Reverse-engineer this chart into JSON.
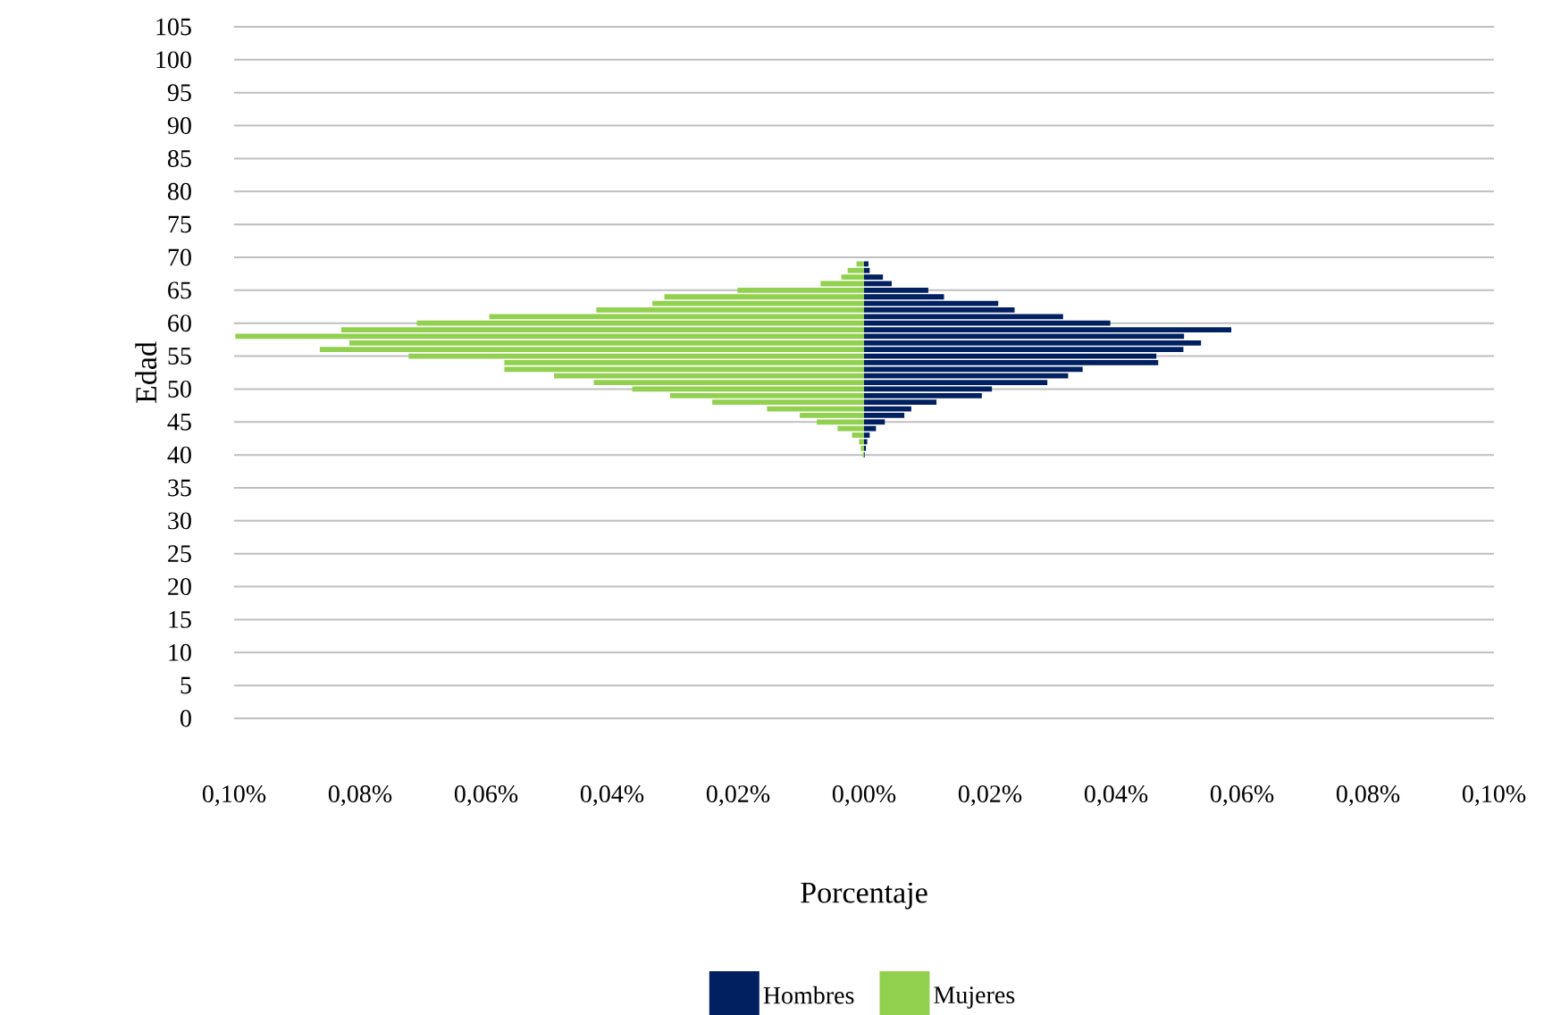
{
  "chart_data": {
    "type": "bar",
    "orientation": "horizontal",
    "xlabel": "Porcentaje",
    "ylabel": "Edad",
    "x": [
      69,
      68,
      67,
      66,
      65,
      64,
      63,
      62,
      61,
      60,
      59,
      58,
      57,
      56,
      55,
      54,
      53,
      52,
      51,
      50,
      49,
      48,
      47,
      46,
      45,
      44,
      43,
      42,
      41,
      40
    ],
    "series": [
      {
        "name": "Hombres",
        "color": "#002060",
        "values": [
          0.0007,
          0.0009,
          0.003,
          0.0044,
          0.0102,
          0.0127,
          0.0213,
          0.0239,
          0.0316,
          0.0391,
          0.0583,
          0.0508,
          0.0535,
          0.0507,
          0.0464,
          0.0467,
          0.0347,
          0.0324,
          0.0291,
          0.0203,
          0.0187,
          0.0115,
          0.0075,
          0.0064,
          0.0033,
          0.0019,
          0.0009,
          0.0005,
          0.0003,
          0.0001
        ]
      },
      {
        "name": "Mujeres",
        "color": "#92d050",
        "values": [
          -0.0012,
          -0.0026,
          -0.0036,
          -0.0069,
          -0.0201,
          -0.0317,
          -0.0336,
          -0.0425,
          -0.0595,
          -0.071,
          -0.083,
          -0.0998,
          -0.0817,
          -0.0864,
          -0.0723,
          -0.0571,
          -0.0571,
          -0.0492,
          -0.0429,
          -0.0368,
          -0.0308,
          -0.0241,
          -0.0154,
          -0.0102,
          -0.0075,
          -0.0042,
          -0.0019,
          -0.0008,
          -0.0005,
          -0.0002
        ]
      }
    ],
    "xlim": [
      -0.1,
      0.1
    ],
    "xticks": [
      {
        "value": -0.1,
        "label": "0,10%"
      },
      {
        "value": -0.08,
        "label": "0,08%"
      },
      {
        "value": -0.06,
        "label": "0,06%"
      },
      {
        "value": -0.04,
        "label": "0,04%"
      },
      {
        "value": -0.02,
        "label": "0,02%"
      },
      {
        "value": 0,
        "label": "0,00%"
      },
      {
        "value": 0.02,
        "label": "0,02%"
      },
      {
        "value": 0.04,
        "label": "0,04%"
      },
      {
        "value": 0.06,
        "label": "0,06%"
      },
      {
        "value": 0.08,
        "label": "0,08%"
      },
      {
        "value": 0.1,
        "label": "0,10%"
      }
    ],
    "ylim": [
      0,
      105
    ],
    "yticks": [
      0,
      5,
      10,
      15,
      20,
      25,
      30,
      35,
      40,
      45,
      50,
      55,
      60,
      65,
      70,
      75,
      80,
      85,
      90,
      95,
      100,
      105
    ],
    "stacked": true,
    "grid": "y",
    "legend": "bottom"
  }
}
